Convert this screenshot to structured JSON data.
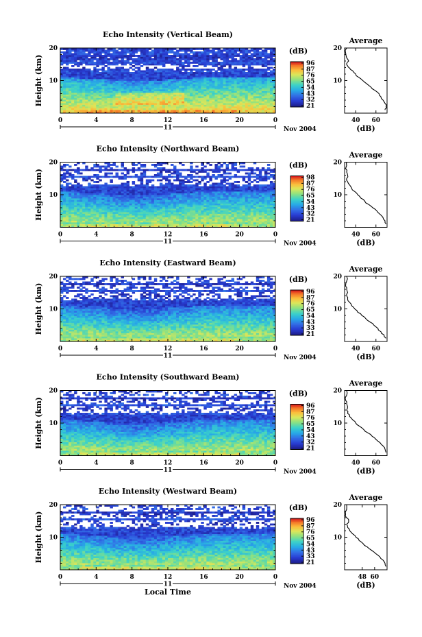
{
  "chart_data": [
    {
      "type": "heatmap",
      "title": "Echo Intensity (Vertical Beam)",
      "ylabel": "Height (km)",
      "y_ticks": [
        "20",
        "10"
      ],
      "x_ticks": [
        "0",
        "4",
        "8",
        "12",
        "16",
        "20",
        "0"
      ],
      "date_day": "11",
      "date_label": "Nov 2004",
      "colorbar_unit": "(dB)",
      "colorbar_ticks": [
        "96",
        "87",
        "76",
        "65",
        "54",
        "43",
        "32",
        "21"
      ],
      "colorbar_colors": [
        "#d7191c",
        "#f46d43",
        "#fdae61",
        "#fee08b",
        "#d9ef8b",
        "#a6d96a",
        "#66c2a5",
        "#3288bd",
        "#2b4fd0",
        "#1f1fa0"
      ],
      "average": {
        "title": "Average",
        "x_ticks": [
          "40",
          "60"
        ],
        "xlabel": "(dB)",
        "xlim": [
          29,
          71
        ],
        "y_ticks": [
          "20",
          "10"
        ],
        "ylim": [
          0,
          20
        ],
        "x": [
          69,
          70,
          70,
          69,
          67,
          65,
          63,
          59,
          55,
          51,
          47,
          43,
          40,
          37,
          34,
          32,
          31,
          33,
          31,
          30,
          31
        ],
        "y": [
          1,
          1.5,
          2,
          3,
          4,
          5,
          6,
          7,
          8,
          9,
          10,
          11,
          12,
          13,
          13.8,
          14.5,
          15.2,
          16,
          17,
          18.5,
          20
        ]
      }
    },
    {
      "type": "heatmap",
      "title": "Echo Intensity (Northward Beam)",
      "ylabel": "Height (km)",
      "y_ticks": [
        "20",
        "10"
      ],
      "x_ticks": [
        "0",
        "4",
        "8",
        "12",
        "16",
        "20",
        "0"
      ],
      "date_day": "11",
      "date_label": "Nov 2004",
      "colorbar_unit": "(dB)",
      "colorbar_ticks": [
        "98",
        "87",
        "76",
        "65",
        "54",
        "43",
        "32",
        "21"
      ],
      "colorbar_colors": [
        "#d7191c",
        "#f46d43",
        "#fdae61",
        "#fee08b",
        "#d9ef8b",
        "#a6d96a",
        "#66c2a5",
        "#3288bd",
        "#2b4fd0",
        "#1f1fa0"
      ],
      "average": {
        "title": "Average",
        "x_ticks": [
          "40",
          "60"
        ],
        "xlabel": "(dB)",
        "xlim": [
          29,
          71
        ],
        "y_ticks": [
          "20",
          "10"
        ],
        "ylim": [
          0,
          20
        ],
        "x": [
          70,
          69,
          67,
          64,
          61,
          57,
          53,
          49,
          45,
          42,
          39,
          36,
          34,
          32,
          31,
          32,
          31,
          30,
          31,
          31
        ],
        "y": [
          1,
          2,
          3,
          4,
          5,
          6,
          7,
          8,
          9,
          10,
          11,
          12,
          13,
          14,
          15,
          16,
          17,
          18,
          19,
          20
        ]
      }
    },
    {
      "type": "heatmap",
      "title": "Echo Intensity (Eastward Beam)",
      "ylabel": "Height (km)",
      "y_ticks": [
        "20",
        "10"
      ],
      "x_ticks": [
        "0",
        "4",
        "8",
        "12",
        "16",
        "20",
        "0"
      ],
      "date_day": "11",
      "date_label": "Nov 2004",
      "colorbar_unit": "(dB)",
      "colorbar_ticks": [
        "96",
        "87",
        "76",
        "65",
        "54",
        "43",
        "33",
        "21"
      ],
      "colorbar_colors": [
        "#d7191c",
        "#f46d43",
        "#fdae61",
        "#fee08b",
        "#d9ef8b",
        "#a6d96a",
        "#66c2a5",
        "#3288bd",
        "#2b4fd0",
        "#1f1fa0"
      ],
      "average": {
        "title": "Average",
        "x_ticks": [
          "40",
          "60"
        ],
        "xlabel": "(dB)",
        "xlim": [
          29,
          71
        ],
        "y_ticks": [
          "20",
          "10"
        ],
        "ylim": [
          0,
          20
        ],
        "x": [
          70,
          68,
          65,
          62,
          58,
          54,
          50,
          46,
          42,
          39,
          36,
          34,
          32,
          31,
          32,
          31,
          30,
          31,
          31
        ],
        "y": [
          1,
          2,
          3,
          4,
          5,
          6,
          7,
          8,
          9,
          10,
          11,
          12,
          13,
          14,
          15,
          16,
          17,
          18.5,
          20
        ]
      }
    },
    {
      "type": "heatmap",
      "title": "Echo Intensity (Southward Beam)",
      "ylabel": "Height (km)",
      "y_ticks": [
        "20",
        "10"
      ],
      "x_ticks": [
        "0",
        "4",
        "8",
        "12",
        "16",
        "20",
        "0"
      ],
      "date_day": "11",
      "date_label": "Nov 2004",
      "colorbar_unit": "(dB)",
      "colorbar_ticks": [
        "96",
        "87",
        "76",
        "65",
        "54",
        "43",
        "32",
        "21"
      ],
      "colorbar_colors": [
        "#d7191c",
        "#f46d43",
        "#fdae61",
        "#fee08b",
        "#d9ef8b",
        "#a6d96a",
        "#66c2a5",
        "#3288bd",
        "#2b4fd0",
        "#1f1fa0"
      ],
      "average": {
        "title": "Average",
        "x_ticks": [
          "40",
          "60"
        ],
        "xlabel": "(dB)",
        "xlim": [
          29,
          71
        ],
        "y_ticks": [
          "20",
          "10"
        ],
        "ylim": [
          0,
          20
        ],
        "x": [
          70,
          69,
          67,
          64,
          60,
          56,
          52,
          48,
          44,
          40,
          37,
          34,
          32,
          31,
          32,
          31,
          30,
          31,
          31
        ],
        "y": [
          1,
          2,
          3,
          4,
          5,
          6,
          7,
          8,
          9,
          10,
          11,
          12,
          13,
          14,
          15,
          16,
          17,
          18.5,
          20
        ]
      }
    },
    {
      "type": "heatmap",
      "title": "Echo Intensity (Westward Beam)",
      "ylabel": "Height (km)",
      "y_ticks": [
        "20",
        "10"
      ],
      "x_ticks": [
        "0",
        "4",
        "8",
        "12",
        "16",
        "20",
        "0"
      ],
      "date_day": "11",
      "date_label": "Nov 2004",
      "xlabel": "Local Time",
      "colorbar_unit": "(dB)",
      "colorbar_ticks": [
        "96",
        "87",
        "76",
        "65",
        "54",
        "43",
        "33",
        "21"
      ],
      "colorbar_colors": [
        "#d7191c",
        "#f46d43",
        "#fdae61",
        "#fee08b",
        "#d9ef8b",
        "#a6d96a",
        "#66c2a5",
        "#3288bd",
        "#2b4fd0",
        "#1f1fa0"
      ],
      "average": {
        "title": "Average",
        "x_ticks": [
          "48",
          "60"
        ],
        "xlabel": "(dB)",
        "xlim": [
          31,
          72
        ],
        "y_ticks": [
          "20",
          "10"
        ],
        "ylim": [
          0,
          20
        ],
        "x": [
          71,
          70,
          68,
          65,
          61,
          57,
          53,
          49,
          45,
          42,
          39,
          36,
          34,
          33,
          35,
          33,
          32,
          33,
          33
        ],
        "y": [
          1,
          2,
          3,
          4,
          5,
          6,
          7,
          8,
          9,
          10,
          11,
          12,
          13,
          14,
          15,
          16,
          17,
          18.5,
          20
        ]
      }
    }
  ]
}
